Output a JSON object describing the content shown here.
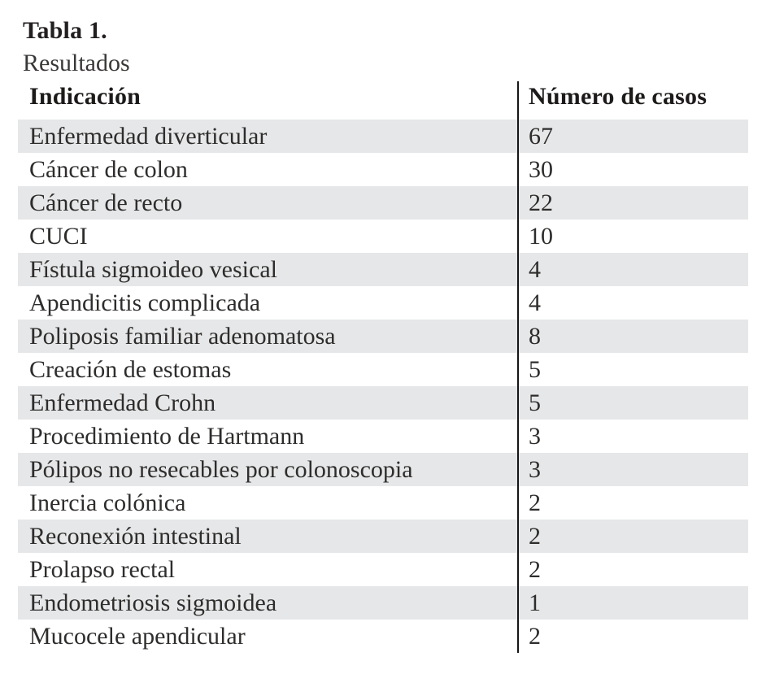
{
  "title": "Tabla 1.",
  "subtitle": "Resultados",
  "table": {
    "columns": {
      "indication": "Indicación",
      "cases": "Número de casos"
    },
    "rows": [
      {
        "indication": "Enfermedad diverticular",
        "cases": "67"
      },
      {
        "indication": "Cáncer de colon",
        "cases": "30"
      },
      {
        "indication": "Cáncer de recto",
        "cases": "22"
      },
      {
        "indication": "CUCI",
        "cases": "10"
      },
      {
        "indication": "Fístula sigmoideo vesical",
        "cases": "4"
      },
      {
        "indication": "Apendicitis complicada",
        "cases": "4"
      },
      {
        "indication": "Poliposis familiar adenomatosa",
        "cases": "8"
      },
      {
        "indication": "Creación de estomas",
        "cases": "5"
      },
      {
        "indication": "Enfermedad Crohn",
        "cases": "5"
      },
      {
        "indication": "Procedimiento de Hartmann",
        "cases": "3"
      },
      {
        "indication": "Pólipos no resecables por colonoscopia",
        "cases": "3"
      },
      {
        "indication": "Inercia colónica",
        "cases": "2"
      },
      {
        "indication": "Reconexión intestinal",
        "cases": "2"
      },
      {
        "indication": "Prolapso rectal",
        "cases": "2"
      },
      {
        "indication": "Endometriosis sigmoidea",
        "cases": "1"
      },
      {
        "indication": "Mucocele apendicular",
        "cases": "2"
      }
    ],
    "stripe_color": "#e6e7e8",
    "divider_color": "#161616"
  },
  "chart_data": {
    "type": "table",
    "title": "Tabla 1. Resultados",
    "columns": [
      "Indicación",
      "Número de casos"
    ],
    "categories": [
      "Enfermedad diverticular",
      "Cáncer de colon",
      "Cáncer de recto",
      "CUCI",
      "Fístula sigmoideo vesical",
      "Apendicitis complicada",
      "Poliposis familiar adenomatosa",
      "Creación de estomas",
      "Enfermedad Crohn",
      "Procedimiento de Hartmann",
      "Pólipos no resecables por colonoscopia",
      "Inercia colónica",
      "Reconexión intestinal",
      "Prolapso rectal",
      "Endometriosis sigmoidea",
      "Mucocele apendicular"
    ],
    "values": [
      67,
      30,
      22,
      10,
      4,
      4,
      8,
      5,
      5,
      3,
      3,
      2,
      2,
      2,
      1,
      2
    ]
  }
}
